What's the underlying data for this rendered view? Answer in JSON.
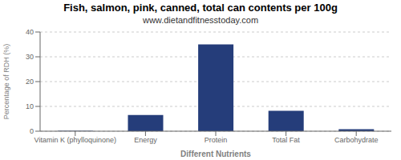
{
  "chart_data": {
    "type": "bar",
    "title": "Fish, salmon, pink, canned, total can contents per 100g",
    "subtitle": "www.dietandfitnesstoday.com",
    "xlabel": "Different Nutrients",
    "ylabel": "Percentage of RDH (%)",
    "categories": [
      "Vitamin K (phylloquinone)",
      "Energy",
      "Protein",
      "Total Fat",
      "Carbohydrate"
    ],
    "values": [
      0.2,
      6.5,
      35.0,
      8.2,
      0.8
    ],
    "color": "#253d7a",
    "ylim": [
      0,
      40
    ],
    "yticks": [
      0,
      10,
      20,
      30,
      40
    ],
    "grid": true
  }
}
